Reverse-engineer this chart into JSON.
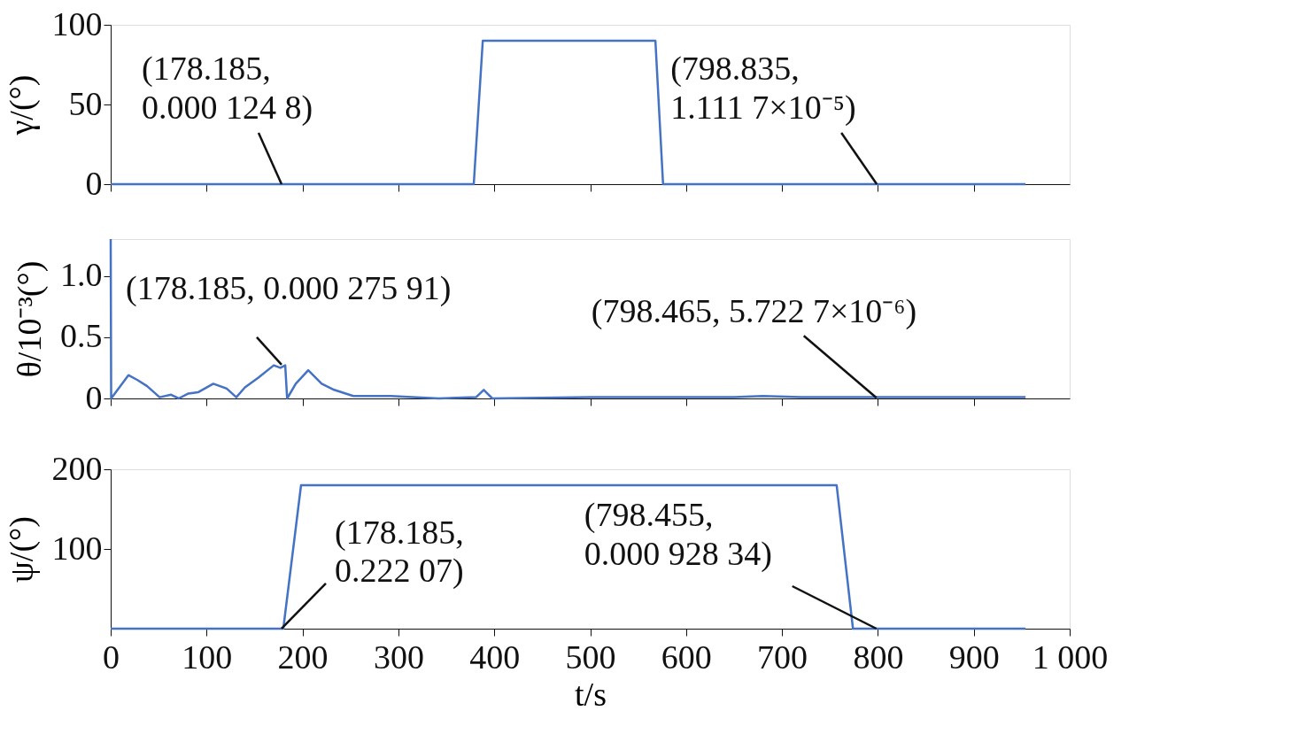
{
  "chart_data": [
    {
      "type": "line",
      "ylabel": "γ/(°)",
      "xlim": [
        0,
        1000
      ],
      "ylim": [
        0,
        100
      ],
      "yticks": [
        0,
        50,
        100
      ],
      "xticks": [
        0,
        100,
        200,
        300,
        400,
        500,
        600,
        700,
        800,
        900
      ],
      "tick_labels": "y",
      "grid": false,
      "line_style": "solid",
      "marker": "none",
      "series": [
        {
          "color": "#4472c4",
          "x": [
            0,
            378.6,
            388,
            568,
            576,
            954
          ],
          "values": [
            0,
            0,
            90,
            90,
            0,
            0
          ]
        }
      ],
      "annotations": [
        {
          "text": "(178.185,\n0.000 124 8)",
          "x": 178.185,
          "y": 0.0001248
        },
        {
          "text": "(798.835,\n1.111 7×10⁻⁵)",
          "x": 798.835,
          "y": 1.1117e-05
        }
      ]
    },
    {
      "type": "line",
      "ylabel": "θ/10⁻³(°)",
      "xlim": [
        0,
        1000
      ],
      "ylim": [
        0,
        1.3
      ],
      "yticks": [
        0,
        0.5,
        {
          "value": 1.0,
          "label": "1.0"
        }
      ],
      "xticks": [
        0,
        100,
        200,
        300,
        400,
        500,
        600,
        700,
        800,
        900
      ],
      "tick_labels": "y",
      "grid": false,
      "line_style": "solid",
      "marker": "none",
      "series": [
        {
          "color": "#4472c4",
          "x": [
            0,
            0.5,
            18.5,
            28,
            38,
            51,
            63,
            71,
            81,
            91,
            107,
            121,
            131,
            140,
            154,
            170,
            177,
            182,
            184,
            193,
            206,
            220,
            233,
            253,
            292,
            342,
            381,
            389,
            398,
            500,
            650,
            680,
            720,
            800,
            900,
            954
          ],
          "values": [
            1.3,
            0,
            0.19,
            0.15,
            0.1,
            0.01,
            0.03,
            0.0,
            0.04,
            0.05,
            0.12,
            0.08,
            0.01,
            0.09,
            0.17,
            0.27,
            0.25,
            0.27,
            0.0,
            0.12,
            0.23,
            0.12,
            0.07,
            0.02,
            0.02,
            0.0,
            0.01,
            0.07,
            0.0,
            0.01,
            0.01,
            0.02,
            0.01,
            0.01,
            0.01,
            0.01
          ]
        }
      ],
      "annotations": [
        {
          "text": "(178.185, 0.000 275 91)",
          "x": 178.185,
          "y": 0.27591
        },
        {
          "text": "(798.465, 5.722 7×10⁻⁶)",
          "x": 798.465,
          "y": 0.0057227
        }
      ]
    },
    {
      "type": "line",
      "ylabel": "ψ/(°)",
      "xlabel": "t/s",
      "xlim": [
        0,
        1000
      ],
      "ylim": [
        0,
        200
      ],
      "yticks": [
        100,
        200
      ],
      "xticks": [
        0,
        100,
        200,
        300,
        400,
        500,
        600,
        700,
        800,
        900,
        {
          "value": 1000,
          "label": "1 000"
        }
      ],
      "grid": false,
      "line_style": "solid",
      "marker": "none",
      "series": [
        {
          "color": "#4472c4",
          "x": [
            0,
            180,
            198.5,
            757,
            774,
            954
          ],
          "values": [
            0,
            0,
            180,
            180,
            0,
            0
          ]
        }
      ],
      "annotations": [
        {
          "text": "(178.185,\n0.222 07)",
          "x": 178.185,
          "y": 0.22207
        },
        {
          "text": "(798.455,\n0.000 928 34)",
          "x": 798.455,
          "y": 0.00092834
        }
      ]
    }
  ]
}
